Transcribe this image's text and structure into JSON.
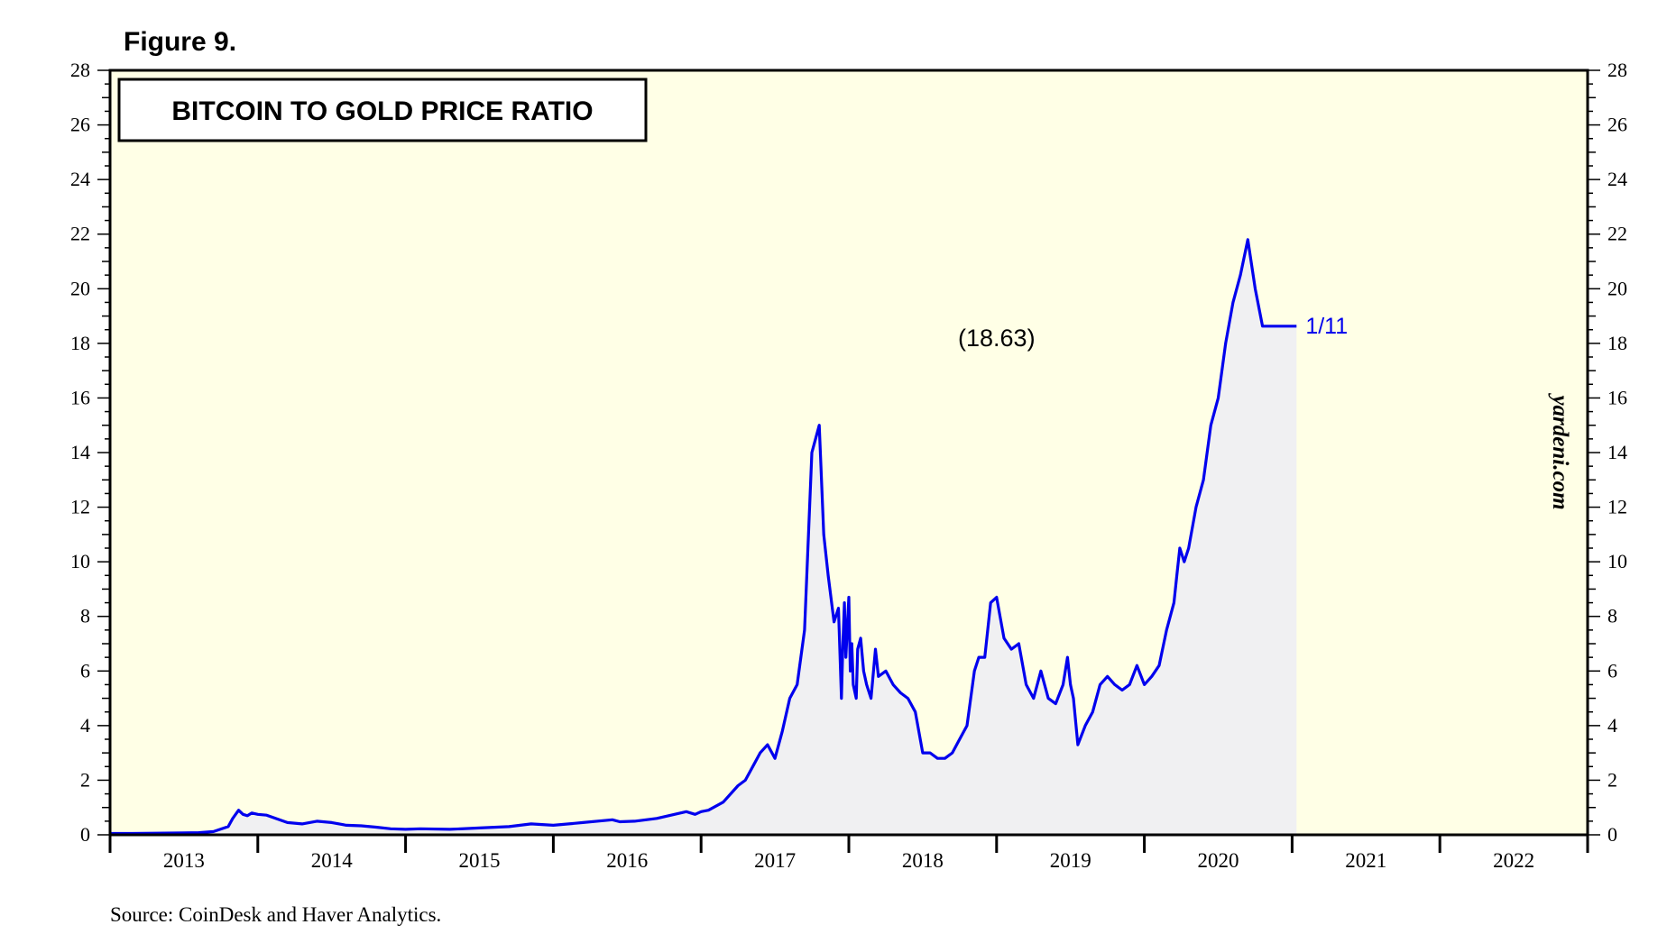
{
  "figure_label": "Figure 9.",
  "source": "Source: CoinDesk and Haver Analytics.",
  "watermark": "yardeni.com",
  "colors": {
    "background": "#ffffe6",
    "line": "#0000ee",
    "fill": "#f0f0f2",
    "axis": "#000000"
  },
  "chart_data": {
    "type": "area",
    "title": "BITCOIN TO GOLD PRICE RATIO",
    "xlabel": "",
    "ylabel": "",
    "xlim": [
      2013.0,
      2023.0
    ],
    "ylim": [
      0,
      28
    ],
    "y_ticks": [
      0,
      2,
      4,
      6,
      8,
      10,
      12,
      14,
      16,
      18,
      20,
      22,
      24,
      26,
      28
    ],
    "y_tick_labels": [
      "0",
      "2",
      "4",
      "6",
      "8",
      "10",
      "12",
      "14",
      "16",
      "18",
      "20",
      "22",
      "24",
      "26",
      "28"
    ],
    "x_tick_labels": [
      "2013",
      "2014",
      "2015",
      "2016",
      "2017",
      "2018",
      "2019",
      "2020",
      "2021",
      "2022"
    ],
    "annotations": [
      {
        "text": "(18.63)",
        "x": 2019.0,
        "y": 17.9
      }
    ],
    "end_label": "1/11",
    "series": [
      {
        "name": "Bitcoin to Gold Price Ratio",
        "x": [
          2013.0,
          2013.15,
          2013.3,
          2013.5,
          2013.6,
          2013.7,
          2013.8,
          2013.83,
          2013.87,
          2013.9,
          2013.93,
          2013.96,
          2014.0,
          2014.06,
          2014.12,
          2014.2,
          2014.3,
          2014.4,
          2014.5,
          2014.6,
          2014.7,
          2014.8,
          2014.9,
          2015.0,
          2015.1,
          2015.3,
          2015.5,
          2015.7,
          2015.85,
          2016.0,
          2016.2,
          2016.4,
          2016.45,
          2016.55,
          2016.7,
          2016.9,
          2016.96,
          2017.0,
          2017.05,
          2017.15,
          2017.25,
          2017.3,
          2017.35,
          2017.4,
          2017.45,
          2017.5,
          2017.55,
          2017.6,
          2017.65,
          2017.7,
          2017.75,
          2017.8,
          2017.83,
          2017.86,
          2017.9,
          2017.93,
          2017.95,
          2017.96,
          2017.97,
          2017.98,
          2018.0,
          2018.01,
          2018.02,
          2018.03,
          2018.05,
          2018.06,
          2018.08,
          2018.1,
          2018.12,
          2018.15,
          2018.18,
          2018.2,
          2018.25,
          2018.3,
          2018.35,
          2018.4,
          2018.45,
          2018.5,
          2018.55,
          2018.6,
          2018.65,
          2018.7,
          2018.75,
          2018.8,
          2018.85,
          2018.88,
          2018.92,
          2018.96,
          2019.0,
          2019.05,
          2019.1,
          2019.15,
          2019.2,
          2019.25,
          2019.3,
          2019.35,
          2019.4,
          2019.45,
          2019.48,
          2019.5,
          2019.52,
          2019.55,
          2019.6,
          2019.65,
          2019.7,
          2019.75,
          2019.8,
          2019.85,
          2019.9,
          2019.95,
          2020.0,
          2020.05,
          2020.1,
          2020.15,
          2020.2,
          2020.22,
          2020.24,
          2020.27,
          2020.3,
          2020.35,
          2020.4,
          2020.45,
          2020.5,
          2020.55,
          2020.6,
          2020.65,
          2020.7,
          2020.75,
          2020.8,
          2020.85,
          2020.88,
          2020.9,
          2020.93,
          2020.95,
          2020.97,
          2020.99,
          2021.0,
          2021.01,
          2021.02,
          2021.03
        ],
        "values": [
          0.05,
          0.05,
          0.06,
          0.07,
          0.08,
          0.12,
          0.3,
          0.6,
          0.9,
          0.75,
          0.7,
          0.8,
          0.75,
          0.72,
          0.6,
          0.45,
          0.4,
          0.5,
          0.45,
          0.35,
          0.33,
          0.28,
          0.22,
          0.2,
          0.22,
          0.2,
          0.25,
          0.3,
          0.4,
          0.35,
          0.45,
          0.55,
          0.48,
          0.5,
          0.6,
          0.85,
          0.75,
          0.85,
          0.9,
          1.2,
          1.8,
          2.0,
          2.5,
          3.0,
          3.3,
          2.8,
          3.8,
          5.0,
          5.5,
          7.5,
          14.0,
          15.0,
          11.0,
          9.5,
          7.8,
          8.3,
          5.0,
          7.0,
          8.5,
          6.5,
          8.7,
          6.0,
          7.0,
          5.5,
          5.0,
          6.8,
          7.2,
          6.0,
          5.5,
          5.0,
          6.8,
          5.8,
          6.0,
          5.5,
          5.2,
          5.0,
          4.5,
          3.0,
          3.0,
          2.8,
          2.8,
          3.0,
          3.5,
          4.0,
          6.0,
          6.5,
          6.5,
          8.5,
          8.7,
          7.2,
          6.8,
          7.0,
          5.5,
          5.0,
          6.0,
          5.0,
          4.8,
          5.5,
          6.5,
          5.5,
          5.0,
          3.3,
          4.0,
          4.5,
          5.5,
          5.8,
          5.5,
          5.3,
          5.5,
          6.2,
          5.5,
          5.8,
          6.2,
          7.5,
          8.5,
          9.5,
          10.5,
          10.0,
          10.5,
          12.0,
          13.0,
          15.0,
          16.0,
          18.0,
          19.5,
          20.5,
          21.8,
          20.0,
          18.63,
          18.63,
          18.63,
          18.63,
          18.63,
          18.63,
          18.63,
          18.63,
          18.63,
          18.63,
          18.63,
          18.63
        ]
      }
    ]
  }
}
